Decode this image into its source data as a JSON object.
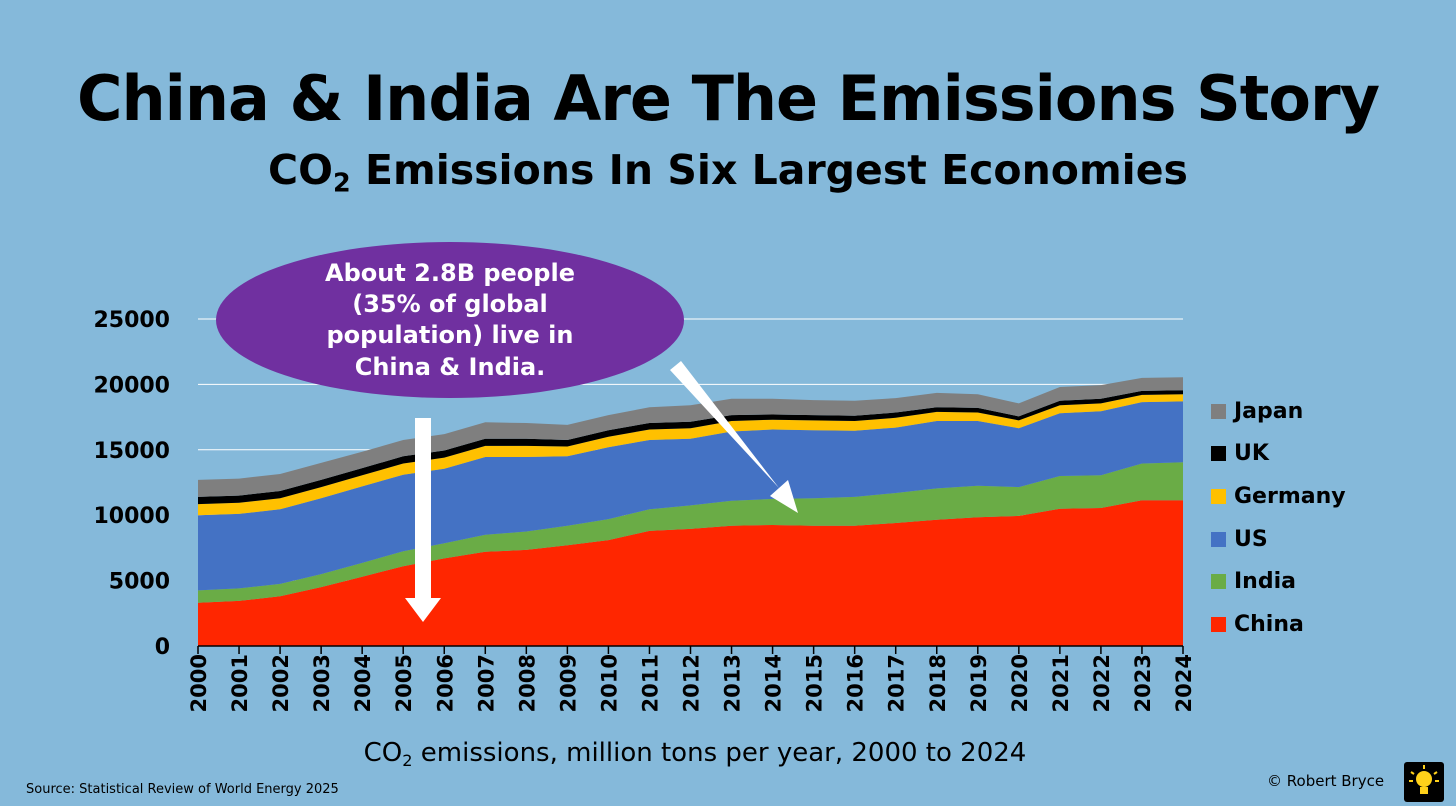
{
  "header": {
    "title": "China & India Are The Emissions Story",
    "subtitle_prefix": "CO",
    "subtitle_sub": "2",
    "subtitle_suffix": " Emissions In Six Largest Economies"
  },
  "callout": {
    "lines": [
      "About 2.8B people",
      "(35% of global",
      "population) live in",
      "China & India."
    ]
  },
  "footer": {
    "xlabel_prefix": "CO",
    "xlabel_sub": "2",
    "xlabel_suffix": " emissions, million tons per year, 2000 to 2024",
    "source": "Source: Statistical Review of World Energy  2025",
    "credit": "© Robert Bryce"
  },
  "chart_data": {
    "type": "area",
    "stacked": true,
    "title": "China & India Are The Emissions Story",
    "subtitle": "CO2 Emissions In Six Largest Economies",
    "xlabel": "CO2 emissions, million tons per year, 2000 to 2024",
    "ylabel": "",
    "ylim": [
      0,
      25000
    ],
    "yticks": [
      0,
      5000,
      10000,
      15000,
      20000,
      25000
    ],
    "grid": true,
    "legend_position": "right",
    "categories": [
      "2000",
      "2001",
      "2002",
      "2003",
      "2004",
      "2005",
      "2006",
      "2007",
      "2008",
      "2009",
      "2010",
      "2011",
      "2012",
      "2013",
      "2014",
      "2015",
      "2016",
      "2017",
      "2018",
      "2019",
      "2020",
      "2021",
      "2022",
      "2023",
      "2024"
    ],
    "series": [
      {
        "name": "China",
        "color": "#ff2600",
        "values": [
          3300,
          3450,
          3800,
          4500,
          5300,
          6100,
          6700,
          7200,
          7350,
          7700,
          8100,
          8800,
          8950,
          9200,
          9250,
          9200,
          9200,
          9400,
          9650,
          9850,
          9950,
          10500,
          10550,
          11150,
          11150
        ]
      },
      {
        "name": "India",
        "color": "#6aac46",
        "values": [
          950,
          950,
          950,
          1000,
          1050,
          1150,
          1150,
          1300,
          1400,
          1500,
          1600,
          1650,
          1800,
          1900,
          2000,
          2100,
          2200,
          2300,
          2400,
          2400,
          2200,
          2500,
          2500,
          2800,
          2900
        ]
      },
      {
        "name": "US",
        "color": "#4472c4",
        "values": [
          5750,
          5700,
          5700,
          5800,
          5850,
          5850,
          5700,
          5950,
          5700,
          5300,
          5500,
          5300,
          5100,
          5300,
          5300,
          5200,
          5050,
          5000,
          5150,
          4950,
          4500,
          4800,
          4900,
          4700,
          4650
        ]
      },
      {
        "name": "Germany",
        "color": "#ffc000",
        "values": [
          850,
          850,
          850,
          850,
          850,
          850,
          850,
          850,
          850,
          750,
          800,
          800,
          800,
          800,
          750,
          750,
          750,
          750,
          700,
          650,
          600,
          600,
          600,
          550,
          550
        ]
      },
      {
        "name": "UK",
        "color": "#000000",
        "values": [
          550,
          550,
          550,
          550,
          550,
          550,
          550,
          550,
          550,
          500,
          500,
          500,
          500,
          450,
          400,
          400,
          400,
          400,
          350,
          350,
          300,
          350,
          350,
          300,
          300
        ]
      },
      {
        "name": "Japan",
        "color": "#7f7f7f",
        "values": [
          1300,
          1300,
          1300,
          1300,
          1250,
          1250,
          1250,
          1250,
          1200,
          1150,
          1150,
          1200,
          1250,
          1250,
          1200,
          1150,
          1150,
          1100,
          1100,
          1050,
          1000,
          1050,
          1050,
          1000,
          1000
        ]
      }
    ]
  }
}
